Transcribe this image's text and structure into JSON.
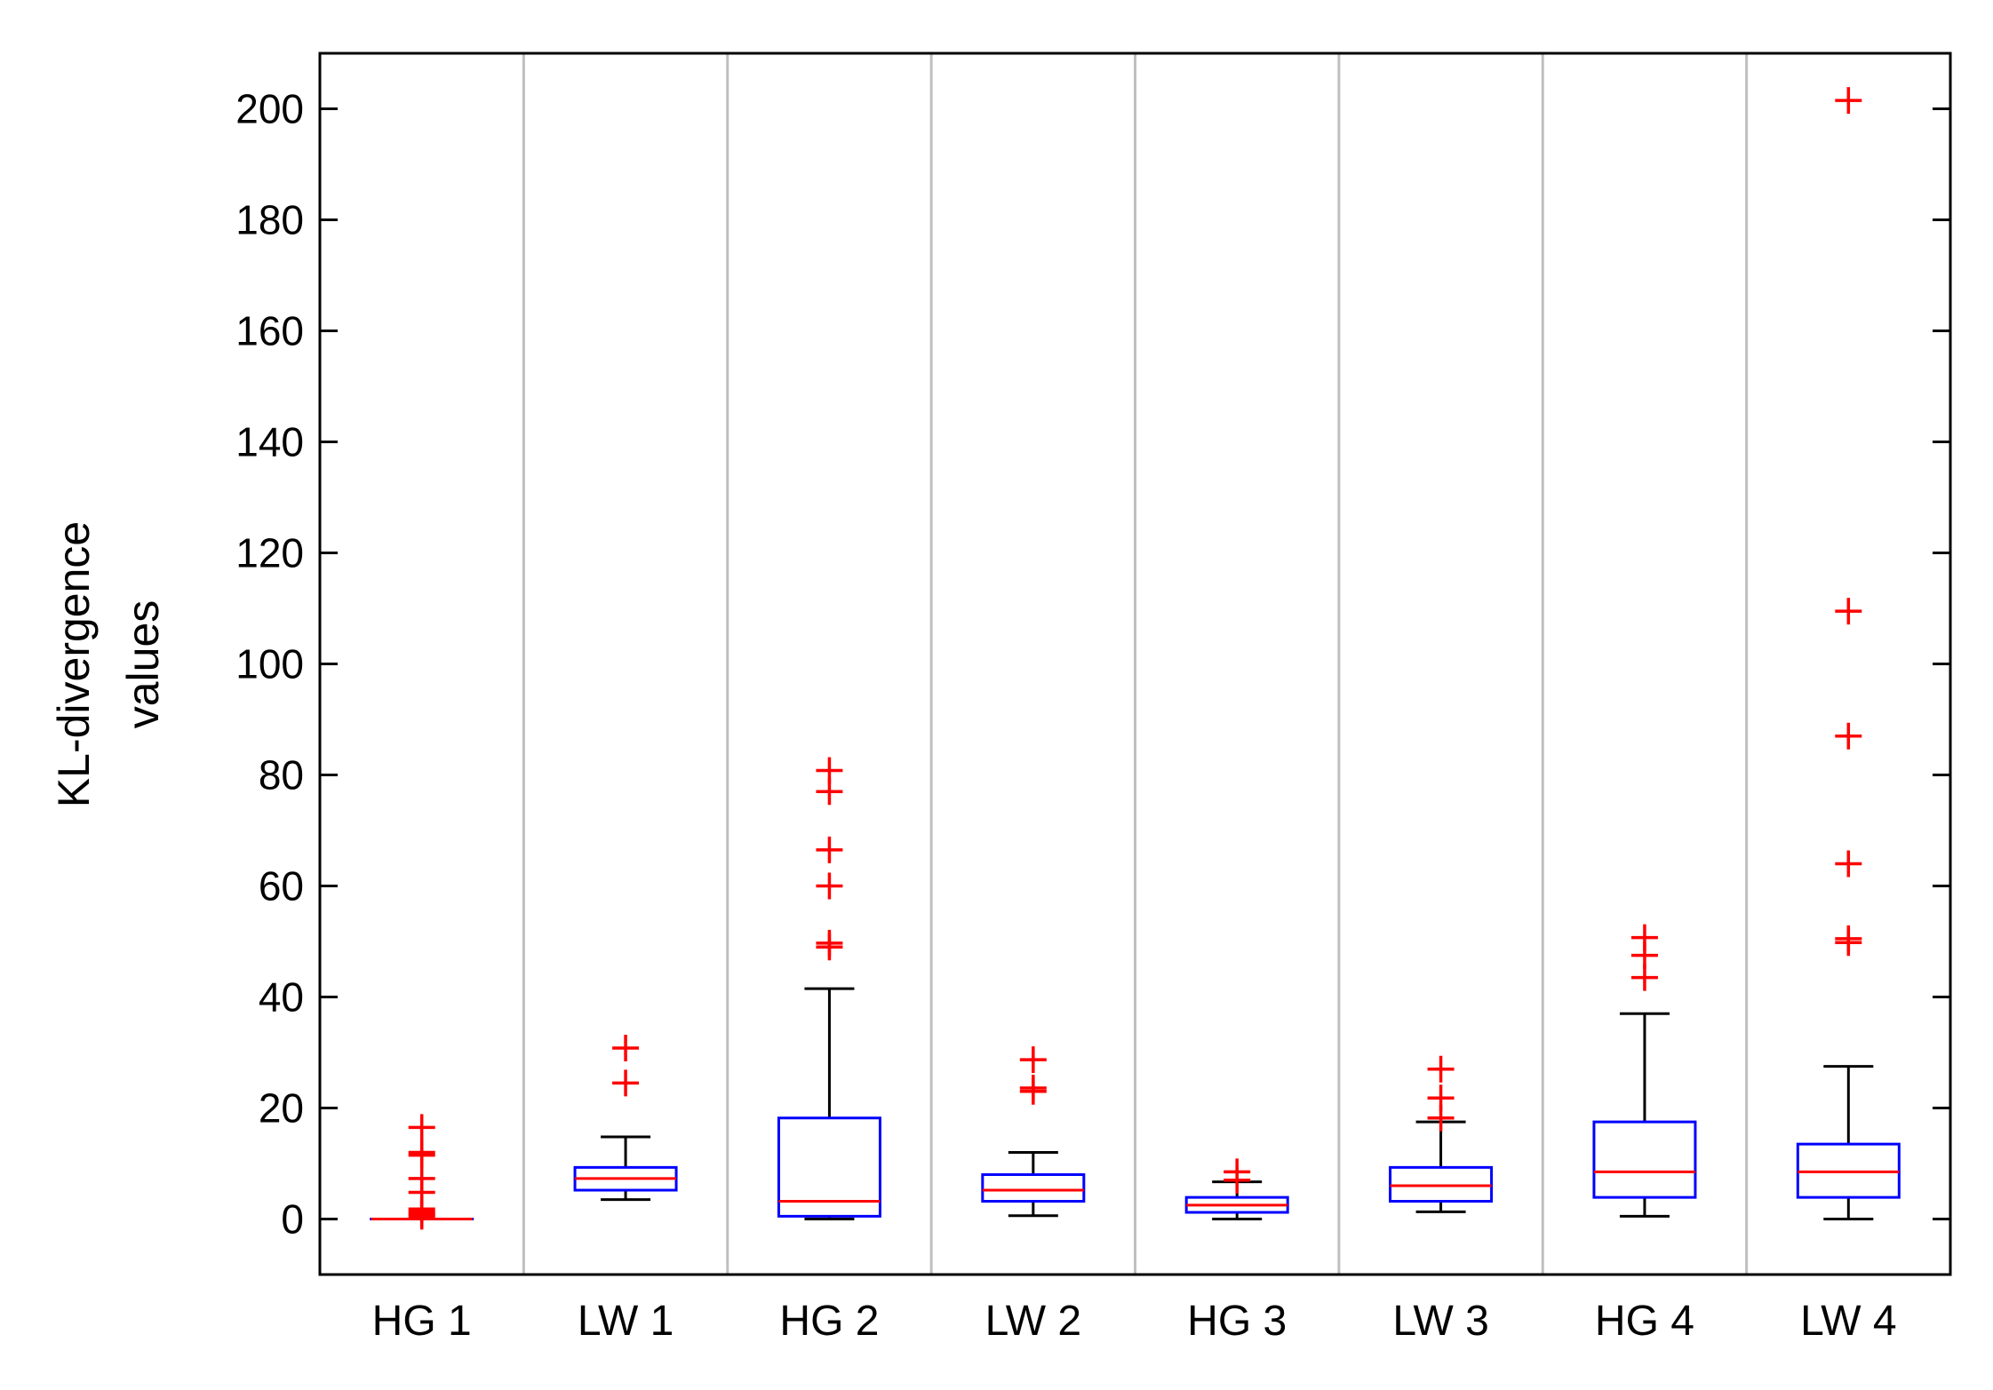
{
  "chart_data": {
    "type": "box",
    "title": "",
    "xlabel": "",
    "ylabel_lines": [
      "KL-divergence",
      "values"
    ],
    "ylim": [
      -10,
      210
    ],
    "yticks": [
      0,
      20,
      40,
      60,
      80,
      100,
      120,
      140,
      160,
      180,
      200
    ],
    "ytick_labels": [
      "0",
      "20",
      "40",
      "60",
      "80",
      "100",
      "120",
      "140",
      "160",
      "180",
      "200"
    ],
    "categories": [
      "HG 1",
      "LW 1",
      "HG 2",
      "LW 2",
      "HG 3",
      "LW 3",
      "HG 4",
      "LW 4"
    ],
    "vertical_separators": true,
    "colors": {
      "box": "#0000ff",
      "median": "#ff0000",
      "whisker": "#000000",
      "outlier": "#ff0000",
      "separator": "#bfbfbf",
      "axis": "#000000"
    },
    "boxes": [
      {
        "name": "HG 1",
        "whisker_low": 0,
        "q1": 0,
        "median": 0,
        "q3": 0,
        "whisker_high": 0,
        "outliers": [
          0.5,
          0.9,
          1.3,
          1.8,
          4.8,
          7.3,
          11.5,
          12.0,
          16.5
        ]
      },
      {
        "name": "LW 1",
        "whisker_low": 3.5,
        "q1": 5.2,
        "median": 7.3,
        "q3": 9.3,
        "whisker_high": 14.8,
        "outliers": [
          24.5,
          30.8
        ]
      },
      {
        "name": "HG 2",
        "whisker_low": 0,
        "q1": 0.5,
        "median": 3.2,
        "q3": 18.2,
        "whisker_high": 41.5,
        "outliers": [
          49.0,
          49.7,
          60.0,
          66.5,
          77.0,
          80.8
        ]
      },
      {
        "name": "LW 2",
        "whisker_low": 0.6,
        "q1": 3.2,
        "median": 5.2,
        "q3": 8.0,
        "whisker_high": 12.0,
        "outliers": [
          23.0,
          23.6,
          28.7
        ]
      },
      {
        "name": "HG 3",
        "whisker_low": 0,
        "q1": 1.2,
        "median": 2.5,
        "q3": 3.9,
        "whisker_high": 6.7,
        "outliers": [
          7.0,
          8.5
        ]
      },
      {
        "name": "LW 3",
        "whisker_low": 1.3,
        "q1": 3.2,
        "median": 6.0,
        "q3": 9.3,
        "whisker_high": 17.5,
        "outliers": [
          18.2,
          21.8,
          27.0
        ]
      },
      {
        "name": "HG 4",
        "whisker_low": 0.5,
        "q1": 3.9,
        "median": 8.5,
        "q3": 17.5,
        "whisker_high": 37.0,
        "outliers": [
          43.5,
          47.5,
          50.7
        ]
      },
      {
        "name": "LW 4",
        "whisker_low": 0,
        "q1": 3.9,
        "median": 8.5,
        "q3": 13.5,
        "whisker_high": 27.5,
        "outliers": [
          49.8,
          50.5,
          64.0,
          87.0,
          109.5,
          201.5
        ]
      }
    ]
  }
}
